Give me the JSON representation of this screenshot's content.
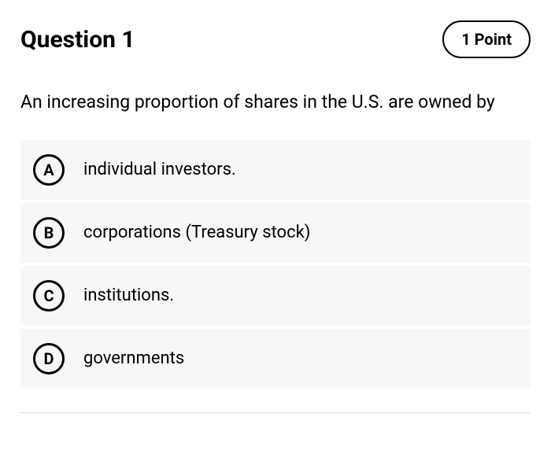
{
  "header": {
    "title": "Question 1",
    "points": "1 Point"
  },
  "prompt": "An increasing proportion of shares in the U.S. are owned by",
  "options": [
    {
      "letter": "A",
      "text": "individual investors."
    },
    {
      "letter": "B",
      "text": "corporations (Treasury stock)"
    },
    {
      "letter": "C",
      "text": "institutions."
    },
    {
      "letter": "D",
      "text": "governments"
    }
  ],
  "colors": {
    "background": "#ffffff",
    "option_bg": "#f7f7f7",
    "text": "#000000",
    "divider": "#dcdcdc"
  }
}
